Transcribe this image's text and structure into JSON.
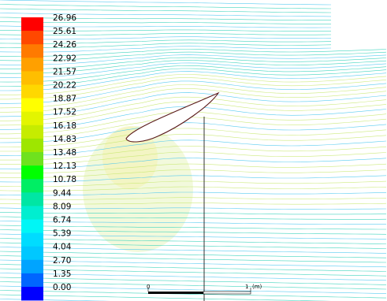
{
  "legend": {
    "labels": [
      "26.96",
      "25.61",
      "24.26",
      "22.92",
      "21.57",
      "20.22",
      "18.87",
      "17.52",
      "16.18",
      "14.83",
      "13.48",
      "12.13",
      "10.78",
      "9.44",
      "8.09",
      "6.74",
      "5.39",
      "4.04",
      "2.70",
      "1.35",
      "0.00"
    ],
    "colors": [
      "#ff0000",
      "#ff4800",
      "#ff7a00",
      "#ffa000",
      "#ffbe00",
      "#ffd800",
      "#ffff00",
      "#e3f500",
      "#c6ec00",
      "#9ee600",
      "#6fe21e",
      "#00ff00",
      "#00ee64",
      "#00e6a4",
      "#00eed0",
      "#00f6f6",
      "#00dcff",
      "#00c8ff",
      "#00a4ff",
      "#0066ff",
      "#0000ff"
    ]
  },
  "scale_bar": {
    "start_label": "0",
    "end_label": "1",
    "unit_label": "(m)"
  },
  "streamlines": {
    "color_main": "#2ed0b8",
    "color_high": "#c8e870",
    "color_secondary": "#47c6f0"
  }
}
